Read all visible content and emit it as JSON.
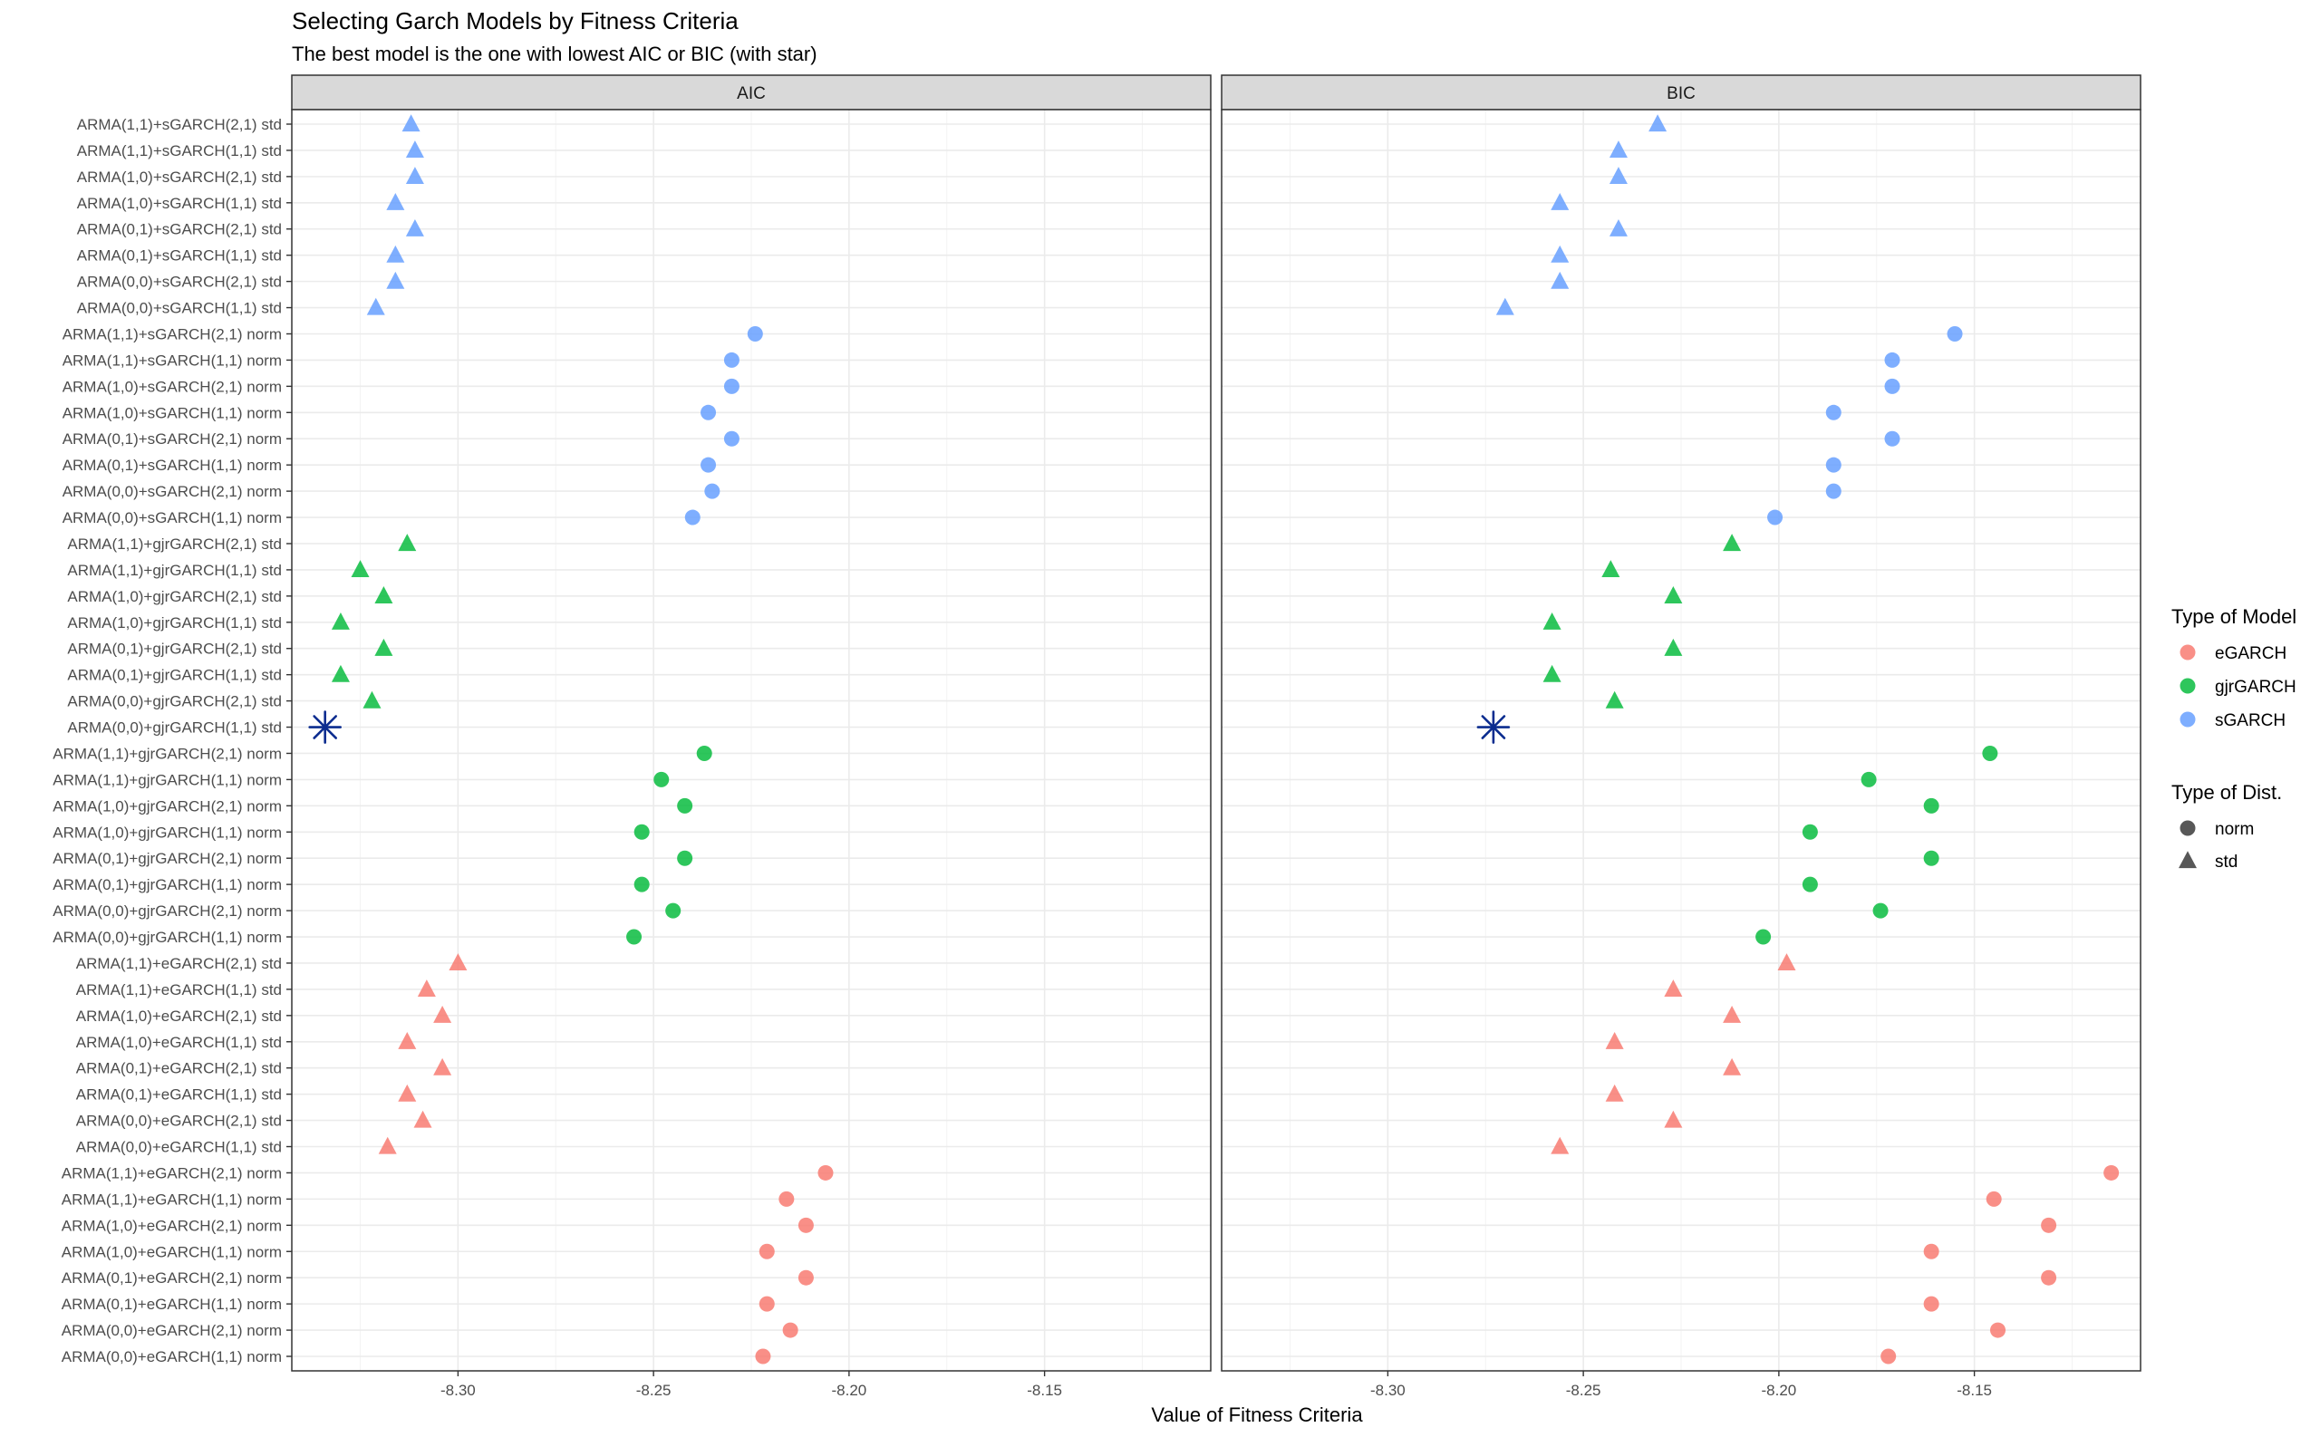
{
  "chart_data": {
    "type": "scatter",
    "title": "Selecting Garch Models by Fitness Criteria",
    "subtitle": "The best model is the one with lowest AIC or BIC (with star)",
    "xlabel": "Value of Fitness Criteria",
    "ylabel": "",
    "xlim": [
      -8.3425,
      -8.1075
    ],
    "x_ticks": [
      -8.3,
      -8.25,
      -8.2,
      -8.15
    ],
    "x_tick_labels": [
      "-8.30",
      "-8.25",
      "-8.20",
      "-8.15"
    ],
    "grid": true,
    "legend_position": "right",
    "models": [
      "ARMA(1,1)+sGARCH(2,1) std",
      "ARMA(1,1)+sGARCH(1,1) std",
      "ARMA(1,0)+sGARCH(2,1) std",
      "ARMA(1,0)+sGARCH(1,1) std",
      "ARMA(0,1)+sGARCH(2,1) std",
      "ARMA(0,1)+sGARCH(1,1) std",
      "ARMA(0,0)+sGARCH(2,1) std",
      "ARMA(0,0)+sGARCH(1,1) std",
      "ARMA(1,1)+sGARCH(2,1) norm",
      "ARMA(1,1)+sGARCH(1,1) norm",
      "ARMA(1,0)+sGARCH(2,1) norm",
      "ARMA(1,0)+sGARCH(1,1) norm",
      "ARMA(0,1)+sGARCH(2,1) norm",
      "ARMA(0,1)+sGARCH(1,1) norm",
      "ARMA(0,0)+sGARCH(2,1) norm",
      "ARMA(0,0)+sGARCH(1,1) norm",
      "ARMA(1,1)+gjrGARCH(2,1) std",
      "ARMA(1,1)+gjrGARCH(1,1) std",
      "ARMA(1,0)+gjrGARCH(2,1) std",
      "ARMA(1,0)+gjrGARCH(1,1) std",
      "ARMA(0,1)+gjrGARCH(2,1) std",
      "ARMA(0,1)+gjrGARCH(1,1) std",
      "ARMA(0,0)+gjrGARCH(2,1) std",
      "ARMA(0,0)+gjrGARCH(1,1) std",
      "ARMA(1,1)+gjrGARCH(2,1) norm",
      "ARMA(1,1)+gjrGARCH(1,1) norm",
      "ARMA(1,0)+gjrGARCH(2,1) norm",
      "ARMA(1,0)+gjrGARCH(1,1) norm",
      "ARMA(0,1)+gjrGARCH(2,1) norm",
      "ARMA(0,1)+gjrGARCH(1,1) norm",
      "ARMA(0,0)+gjrGARCH(2,1) norm",
      "ARMA(0,0)+gjrGARCH(1,1) norm",
      "ARMA(1,1)+eGARCH(2,1) std",
      "ARMA(1,1)+eGARCH(1,1) std",
      "ARMA(1,0)+eGARCH(2,1) std",
      "ARMA(1,0)+eGARCH(1,1) std",
      "ARMA(0,1)+eGARCH(2,1) std",
      "ARMA(0,1)+eGARCH(1,1) std",
      "ARMA(0,0)+eGARCH(2,1) std",
      "ARMA(0,0)+eGARCH(1,1) std",
      "ARMA(1,1)+eGARCH(2,1) norm",
      "ARMA(1,1)+eGARCH(1,1) norm",
      "ARMA(1,0)+eGARCH(2,1) norm",
      "ARMA(1,0)+eGARCH(1,1) norm",
      "ARMA(0,1)+eGARCH(2,1) norm",
      "ARMA(0,1)+eGARCH(1,1) norm",
      "ARMA(0,0)+eGARCH(2,1) norm",
      "ARMA(0,0)+eGARCH(1,1) norm"
    ],
    "model_type": [
      "sGARCH",
      "sGARCH",
      "sGARCH",
      "sGARCH",
      "sGARCH",
      "sGARCH",
      "sGARCH",
      "sGARCH",
      "sGARCH",
      "sGARCH",
      "sGARCH",
      "sGARCH",
      "sGARCH",
      "sGARCH",
      "sGARCH",
      "sGARCH",
      "gjrGARCH",
      "gjrGARCH",
      "gjrGARCH",
      "gjrGARCH",
      "gjrGARCH",
      "gjrGARCH",
      "gjrGARCH",
      "gjrGARCH",
      "gjrGARCH",
      "gjrGARCH",
      "gjrGARCH",
      "gjrGARCH",
      "gjrGARCH",
      "gjrGARCH",
      "gjrGARCH",
      "gjrGARCH",
      "eGARCH",
      "eGARCH",
      "eGARCH",
      "eGARCH",
      "eGARCH",
      "eGARCH",
      "eGARCH",
      "eGARCH",
      "eGARCH",
      "eGARCH",
      "eGARCH",
      "eGARCH",
      "eGARCH",
      "eGARCH",
      "eGARCH",
      "eGARCH"
    ],
    "dist_type": [
      "std",
      "std",
      "std",
      "std",
      "std",
      "std",
      "std",
      "std",
      "norm",
      "norm",
      "norm",
      "norm",
      "norm",
      "norm",
      "norm",
      "norm",
      "std",
      "std",
      "std",
      "std",
      "std",
      "std",
      "std",
      "std",
      "norm",
      "norm",
      "norm",
      "norm",
      "norm",
      "norm",
      "norm",
      "norm",
      "std",
      "std",
      "std",
      "std",
      "std",
      "std",
      "std",
      "std",
      "norm",
      "norm",
      "norm",
      "norm",
      "norm",
      "norm",
      "norm",
      "norm"
    ],
    "panels": [
      {
        "name": "AIC",
        "best_index": 23,
        "values": [
          -8.312,
          -8.311,
          -8.311,
          -8.316,
          -8.311,
          -8.316,
          -8.316,
          -8.321,
          -8.224,
          -8.23,
          -8.23,
          -8.236,
          -8.23,
          -8.236,
          -8.235,
          -8.24,
          -8.313,
          -8.325,
          -8.319,
          -8.33,
          -8.319,
          -8.33,
          -8.322,
          -8.334,
          -8.237,
          -8.248,
          -8.242,
          -8.253,
          -8.242,
          -8.253,
          -8.245,
          -8.255,
          -8.3,
          -8.308,
          -8.304,
          -8.313,
          -8.304,
          -8.313,
          -8.309,
          -8.318,
          -8.206,
          -8.216,
          -8.211,
          -8.221,
          -8.211,
          -8.221,
          -8.215,
          -8.222
        ]
      },
      {
        "name": "BIC",
        "best_index": 23,
        "values": [
          -8.231,
          -8.241,
          -8.241,
          -8.256,
          -8.241,
          -8.256,
          -8.256,
          -8.27,
          -8.155,
          -8.171,
          -8.171,
          -8.186,
          -8.171,
          -8.186,
          -8.186,
          -8.201,
          -8.212,
          -8.243,
          -8.227,
          -8.258,
          -8.227,
          -8.258,
          -8.242,
          -8.273,
          -8.146,
          -8.177,
          -8.161,
          -8.192,
          -8.161,
          -8.192,
          -8.174,
          -8.204,
          -8.198,
          -8.227,
          -8.212,
          -8.242,
          -8.212,
          -8.242,
          -8.227,
          -8.256,
          -8.115,
          -8.145,
          -8.131,
          -8.161,
          -8.131,
          -8.161,
          -8.144,
          -8.172
        ]
      }
    ],
    "legend": {
      "model_title": "Type of Model",
      "model_items": [
        "eGARCH",
        "gjrGARCH",
        "sGARCH"
      ],
      "dist_title": "Type of Dist.",
      "dist_items": [
        "norm",
        "std"
      ]
    },
    "colors": {
      "eGARCH": "#F8766D",
      "gjrGARCH": "#00BA38",
      "sGARCH": "#619CFF",
      "star": "#0B2C8F",
      "strip_fill": "#D9D9D9",
      "grid": "#EBEBEB"
    }
  }
}
